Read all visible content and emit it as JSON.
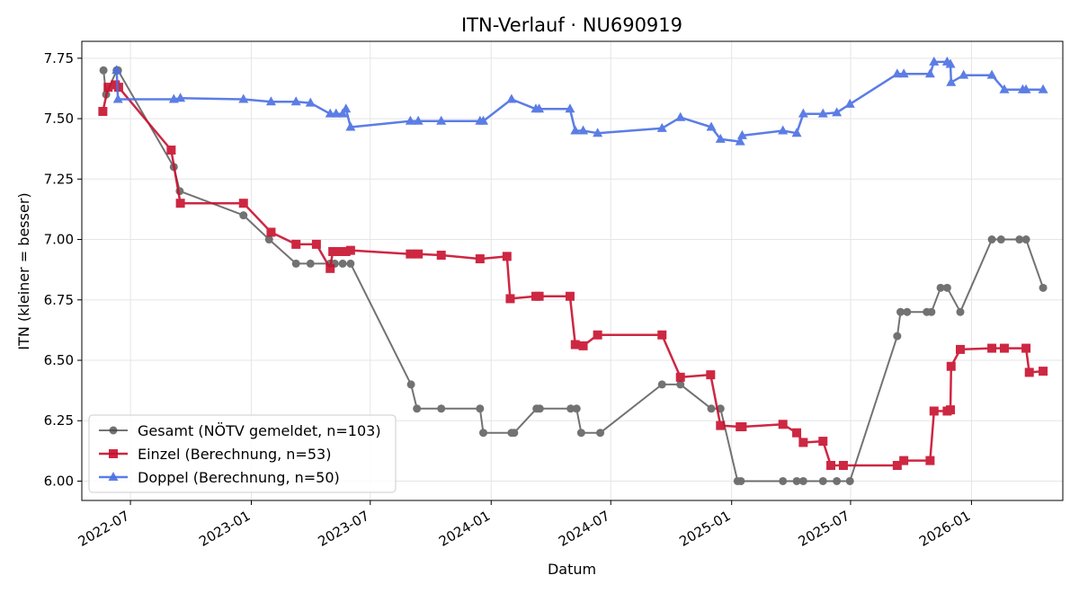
{
  "colors": {
    "gesamt": "#444444",
    "einzel": "#c8102e",
    "doppel": "#4a6fe3",
    "grid": "#e5e5e5"
  },
  "chart_data": {
    "type": "line",
    "title": "ITN-Verlauf · NU690919",
    "xlabel": "Datum",
    "ylabel": "ITN  (kleiner = besser)",
    "ylim": [
      5.92,
      7.82
    ],
    "xlim": [
      "2022-04-18",
      "2026-05-20"
    ],
    "y_ticks": [
      6.0,
      6.25,
      6.5,
      6.75,
      7.0,
      7.25,
      7.5,
      7.75
    ],
    "y_tick_labels": [
      "6.00",
      "6.25",
      "6.50",
      "6.75",
      "7.00",
      "7.25",
      "7.50",
      "7.75"
    ],
    "x_ticks": [
      "2022-07-01",
      "2023-01-01",
      "2023-07-01",
      "2024-01-01",
      "2024-07-01",
      "2025-01-01",
      "2025-07-01",
      "2026-01-01"
    ],
    "x_tick_labels": [
      "2022-07",
      "2023-01",
      "2023-07",
      "2024-01",
      "2024-07",
      "2025-01",
      "2025-07",
      "2026-01"
    ],
    "grid": true,
    "legend_position": "bottom-left",
    "series": [
      {
        "name": "Gesamt (NÖTV gemeldet, n=103)",
        "color_key": "gesamt",
        "marker": "circle",
        "x": [
          "2022-05-21",
          "2022-05-25",
          "2022-06-10",
          "2022-06-12",
          "2022-09-05",
          "2022-09-14",
          "2022-12-20",
          "2023-01-28",
          "2023-03-10",
          "2023-04-01",
          "2023-05-01",
          "2023-05-08",
          "2023-05-20",
          "2023-06-01",
          "2023-09-01",
          "2023-09-10",
          "2023-10-17",
          "2023-12-15",
          "2023-12-20",
          "2024-02-01",
          "2024-02-05",
          "2024-03-10",
          "2024-03-15",
          "2024-05-01",
          "2024-05-10",
          "2024-05-17",
          "2024-06-15",
          "2024-09-17",
          "2024-10-15",
          "2024-12-01",
          "2024-12-15",
          "2025-01-10",
          "2025-01-15",
          "2025-03-20",
          "2025-04-10",
          "2025-04-20",
          "2025-05-20",
          "2025-06-10",
          "2025-06-30",
          "2025-09-10",
          "2025-09-15",
          "2025-09-25",
          "2025-10-25",
          "2025-11-01",
          "2025-11-15",
          "2025-11-25",
          "2025-12-15",
          "2026-02-01",
          "2026-02-15",
          "2026-03-15",
          "2026-03-25",
          "2026-04-20"
        ],
        "y": [
          7.7,
          7.6,
          7.7,
          7.7,
          7.3,
          7.2,
          7.1,
          7.0,
          6.9,
          6.9,
          6.9,
          6.9,
          6.9,
          6.9,
          6.4,
          6.3,
          6.3,
          6.3,
          6.2,
          6.2,
          6.2,
          6.3,
          6.3,
          6.3,
          6.3,
          6.2,
          6.2,
          6.4,
          6.4,
          6.3,
          6.3,
          6.0,
          6.0,
          6.0,
          6.0,
          6.0,
          6.0,
          6.0,
          6.0,
          6.6,
          6.7,
          6.7,
          6.7,
          6.7,
          6.8,
          6.8,
          6.7,
          7.0,
          7.0,
          7.0,
          7.0,
          6.8
        ]
      },
      {
        "name": "Einzel (Berechnung, n=53)",
        "color_key": "einzel",
        "marker": "square",
        "x": [
          "2022-05-20",
          "2022-05-28",
          "2022-06-08",
          "2022-06-13",
          "2022-09-01",
          "2022-09-15",
          "2022-12-20",
          "2023-01-31",
          "2023-03-10",
          "2023-04-10",
          "2023-05-01",
          "2023-05-05",
          "2023-05-15",
          "2023-05-25",
          "2023-06-01",
          "2023-08-31",
          "2023-09-12",
          "2023-10-17",
          "2023-12-15",
          "2024-01-25",
          "2024-01-30",
          "2024-03-09",
          "2024-03-14",
          "2024-04-30",
          "2024-05-08",
          "2024-05-20",
          "2024-06-11",
          "2024-09-17",
          "2024-10-15",
          "2024-11-30",
          "2024-12-15",
          "2025-01-14",
          "2025-01-17",
          "2025-03-20",
          "2025-04-10",
          "2025-04-20",
          "2025-05-20",
          "2025-06-01",
          "2025-06-20",
          "2025-09-10",
          "2025-09-20",
          "2025-10-30",
          "2025-11-05",
          "2025-11-25",
          "2025-11-30",
          "2025-12-01",
          "2025-12-15",
          "2026-02-01",
          "2026-02-20",
          "2026-03-25",
          "2026-03-30",
          "2026-04-20"
        ],
        "y": [
          7.53,
          7.63,
          7.64,
          7.63,
          7.37,
          7.15,
          7.15,
          7.03,
          6.98,
          6.98,
          6.88,
          6.95,
          6.95,
          6.95,
          6.955,
          6.94,
          6.94,
          6.935,
          6.92,
          6.93,
          6.755,
          6.765,
          6.765,
          6.765,
          6.565,
          6.56,
          6.605,
          6.605,
          6.43,
          6.44,
          6.23,
          6.225,
          6.225,
          6.235,
          6.2,
          6.16,
          6.165,
          6.065,
          6.065,
          6.065,
          6.085,
          6.085,
          6.29,
          6.29,
          6.295,
          6.475,
          6.545,
          6.55,
          6.55,
          6.55,
          6.45,
          6.455
        ]
      },
      {
        "name": "Doppel (Berechnung, n=50)",
        "color_key": "doppel",
        "marker": "triangle",
        "x": [
          "2022-06-10",
          "2022-06-12",
          "2022-09-05",
          "2022-09-15",
          "2022-12-20",
          "2023-01-31",
          "2023-03-10",
          "2023-04-01",
          "2023-05-01",
          "2023-05-10",
          "2023-05-20",
          "2023-05-25",
          "2023-06-01",
          "2023-08-31",
          "2023-09-12",
          "2023-10-17",
          "2023-12-15",
          "2023-12-20",
          "2024-02-01",
          "2024-03-09",
          "2024-03-14",
          "2024-04-30",
          "2024-05-08",
          "2024-05-20",
          "2024-06-11",
          "2024-09-17",
          "2024-10-15",
          "2024-12-01",
          "2024-12-15",
          "2025-01-14",
          "2025-01-17",
          "2025-03-20",
          "2025-04-10",
          "2025-04-20",
          "2025-05-20",
          "2025-06-10",
          "2025-06-30",
          "2025-09-10",
          "2025-09-20",
          "2025-10-30",
          "2025-11-05",
          "2025-11-25",
          "2025-11-30",
          "2025-12-01",
          "2025-12-20",
          "2026-02-01",
          "2026-02-20",
          "2026-03-20",
          "2026-03-25",
          "2026-04-20"
        ],
        "y": [
          7.7,
          7.58,
          7.58,
          7.585,
          7.58,
          7.57,
          7.57,
          7.565,
          7.52,
          7.52,
          7.52,
          7.54,
          7.465,
          7.49,
          7.49,
          7.49,
          7.49,
          7.49,
          7.58,
          7.54,
          7.54,
          7.54,
          7.45,
          7.45,
          7.44,
          7.46,
          7.505,
          7.465,
          7.415,
          7.405,
          7.43,
          7.45,
          7.44,
          7.52,
          7.52,
          7.525,
          7.56,
          7.685,
          7.685,
          7.685,
          7.735,
          7.735,
          7.725,
          7.65,
          7.68,
          7.68,
          7.62,
          7.62,
          7.62,
          7.62
        ]
      }
    ]
  }
}
